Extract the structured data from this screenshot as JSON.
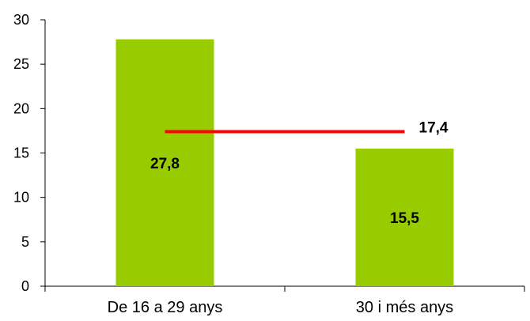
{
  "chart_data": {
    "type": "bar",
    "categories": [
      "De 16 a 29 anys",
      "30 i més anys"
    ],
    "values": [
      27.8,
      15.5
    ],
    "value_labels": [
      "27,8",
      "15,5"
    ],
    "reference_line": {
      "value": 17.4,
      "label": "17,4"
    },
    "title": "",
    "xlabel": "",
    "ylabel": "",
    "ylim": [
      0,
      30
    ],
    "yticks": [
      0,
      5,
      10,
      15,
      20,
      25,
      30
    ],
    "grid": false,
    "legend": "none",
    "colors": {
      "bar": "#99cc00",
      "reference_line": "#ff0000",
      "axis": "#000000"
    }
  }
}
